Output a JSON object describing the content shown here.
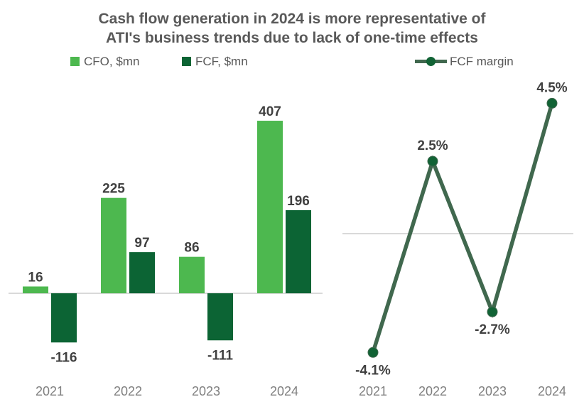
{
  "title": {
    "line1": "Cash flow generation in 2024 is more representative of",
    "line2": "ATI's business trends due to lack of one-time effects"
  },
  "legend": {
    "items": [
      {
        "label": "CFO, $mn",
        "icon": "cfo-square-swatch",
        "color": "#4db84f"
      },
      {
        "label": "FCF, $mn",
        "icon": "fcf-square-swatch",
        "color": "#0c6434"
      },
      {
        "label": "FCF margin",
        "icon": "line-marker-swatch",
        "color": "#40684e",
        "marker_color": "#116335"
      }
    ]
  },
  "colors": {
    "cfo_green": "#4db84f",
    "fcf_dark_green": "#0c6434",
    "margin_line": "#40684e",
    "margin_marker": "#116335",
    "title_text": "#595959",
    "value_label_text": "#404040",
    "axis_label_text": "#7f7f7f",
    "axis_line": "#d9d9d9"
  },
  "chart_data": [
    {
      "type": "bar",
      "categories": [
        "2021",
        "2022",
        "2023",
        "2024"
      ],
      "series": [
        {
          "name": "CFO, $mn",
          "color": "#4db84f",
          "values": [
            16,
            225,
            86,
            407
          ]
        },
        {
          "name": "FCF, $mn",
          "color": "#0c6434",
          "values": [
            -116,
            97,
            -111,
            196
          ]
        }
      ],
      "value_labels": [
        [
          "16",
          "225",
          "86",
          "407"
        ],
        [
          "-116",
          "97",
          "-111",
          "196"
        ]
      ],
      "title": "",
      "xlabel": "",
      "ylabel": "",
      "ylim": [
        -160,
        450
      ],
      "grid": false,
      "baseline_axis": true
    },
    {
      "type": "line",
      "name": "FCF margin",
      "categories": [
        "2021",
        "2022",
        "2023",
        "2024"
      ],
      "values": [
        -4.1,
        2.5,
        -2.7,
        4.5
      ],
      "labels": [
        "-4.1%",
        "2.5%",
        "-2.7%",
        "4.5%"
      ],
      "title": "",
      "xlabel": "",
      "ylabel": "",
      "ylim": [
        -6,
        6
      ],
      "grid": false,
      "zero_gridline": true,
      "legend_position": "top"
    }
  ]
}
